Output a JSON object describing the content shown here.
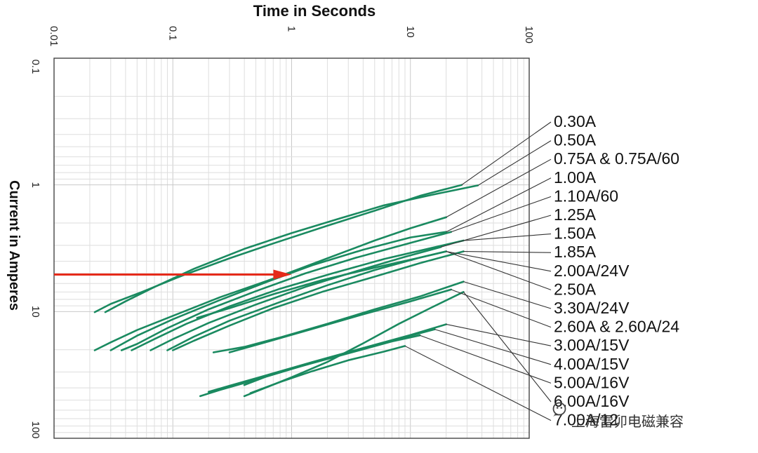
{
  "chart_data": {
    "type": "line",
    "xlabel": "Time in Seconds",
    "ylabel": "Current in Amperes",
    "x_scale": "log",
    "y_scale": "log",
    "xlim": [
      0.01,
      100
    ],
    "ylim": [
      0.1,
      100
    ],
    "y_inverted": true,
    "grid": true,
    "x_ticks": [
      "0.01",
      "0.1",
      "1",
      "10",
      "100"
    ],
    "y_ticks": [
      "0.1",
      "1",
      "10",
      "100"
    ],
    "line_color": "#1a8a60",
    "leader_color": "#333333",
    "arrow": {
      "color": "#e52a1a",
      "from": [
        0.01,
        5.1
      ],
      "to": [
        1.0,
        5.1
      ]
    },
    "series": [
      {
        "name": "0.30A",
        "x": [
          0.022,
          0.03,
          0.055,
          0.12,
          0.3,
          0.7,
          2,
          5,
          12,
          27
        ],
        "y": [
          10.1,
          8.7,
          7.0,
          5.2,
          3.8,
          2.9,
          2.1,
          1.6,
          1.22,
          1.0
        ]
      },
      {
        "name": "0.50A",
        "x": [
          0.027,
          0.04,
          0.07,
          0.15,
          0.4,
          1.0,
          2.5,
          6,
          15,
          37
        ],
        "y": [
          10.1,
          8.3,
          6.4,
          4.6,
          3.2,
          2.4,
          1.85,
          1.45,
          1.2,
          1.01
        ]
      },
      {
        "name": "0.75A & 0.75A/60",
        "x": [
          0.022,
          0.03,
          0.05,
          0.1,
          0.25,
          0.7,
          2,
          5,
          10,
          20
        ],
        "y": [
          20.2,
          17.5,
          14.0,
          10.8,
          7.7,
          5.5,
          3.8,
          2.75,
          2.2,
          1.8
        ]
      },
      {
        "name": "1.00A",
        "x": [
          0.03,
          0.05,
          0.1,
          0.25,
          0.6,
          1.5,
          4,
          10,
          20
        ],
        "y": [
          20.2,
          15.5,
          11.5,
          8.1,
          5.9,
          4.3,
          3.25,
          2.6,
          2.35
        ]
      },
      {
        "name": "1.10A/60",
        "x": [
          0.037,
          0.05,
          0.09,
          0.2,
          0.5,
          1.3,
          3.5,
          9,
          22
        ],
        "y": [
          20.2,
          18.0,
          13.5,
          9.6,
          6.9,
          5.0,
          3.75,
          2.95,
          2.35
        ]
      },
      {
        "name": "1.25A",
        "x": [
          0.065,
          0.1,
          0.2,
          0.5,
          1.3,
          3.5,
          9,
          18
        ],
        "y": [
          20.2,
          16.5,
          12.3,
          8.8,
          6.4,
          4.8,
          3.7,
          3.1
        ]
      },
      {
        "name": "1.50A",
        "x": [
          0.045,
          0.07,
          0.13,
          0.3,
          0.8,
          2.2,
          6,
          15,
          28
        ],
        "y": [
          20.2,
          16.5,
          12.5,
          9.1,
          6.6,
          5.0,
          3.85,
          3.15,
          2.75
        ]
      },
      {
        "name": "1.85A",
        "x": [
          0.1,
          0.15,
          0.3,
          0.7,
          1.8,
          5,
          12,
          28
        ],
        "y": [
          20.2,
          17.0,
          12.9,
          9.4,
          7.0,
          5.3,
          4.15,
          3.35
        ]
      },
      {
        "name": "2.00A/24V",
        "x": [
          0.09,
          0.15,
          0.3,
          0.8,
          2,
          5,
          12,
          20
        ],
        "y": [
          20.2,
          15.8,
          11.8,
          8.4,
          6.2,
          4.7,
          3.75,
          3.35
        ]
      },
      {
        "name": "2.50A",
        "x": [
          0.16,
          0.3,
          0.7,
          1.8,
          5,
          12,
          20
        ],
        "y": [
          11.2,
          9.4,
          7.3,
          5.65,
          4.5,
          3.75,
          3.35
        ]
      },
      {
        "name": "3.30A/24V",
        "x": [
          0.22,
          0.4,
          0.8,
          2,
          5,
          12,
          28
        ],
        "y": [
          21.0,
          19.0,
          16.0,
          12.5,
          9.6,
          7.6,
          5.8
        ]
      },
      {
        "name": "2.60A & 2.60A/24",
        "x": [
          0.3,
          0.6,
          1.5,
          4,
          10,
          22
        ],
        "y": [
          21.0,
          17.5,
          13.7,
          10.5,
          8.3,
          6.7
        ]
      },
      {
        "name": "3.00A/15V",
        "x": [
          0.2,
          0.3,
          0.6,
          1.5,
          4,
          10,
          20
        ],
        "y": [
          43.0,
          38.5,
          32.0,
          25.0,
          19.4,
          15.3,
          12.6
        ]
      },
      {
        "name": "4.00A/15V",
        "x": [
          0.17,
          0.25,
          0.5,
          1.2,
          3,
          8,
          16
        ],
        "y": [
          46.5,
          41.5,
          34.5,
          27.0,
          21.0,
          16.4,
          13.8
        ]
      },
      {
        "name": "5.00A/16V",
        "x": [
          0.4,
          0.7,
          1.5,
          3.5,
          7,
          12
        ],
        "y": [
          38.0,
          31.0,
          25.5,
          20.5,
          17.2,
          15.4
        ]
      },
      {
        "name": "6.00A/16V",
        "x": [
          0.4,
          0.6,
          1.0,
          2,
          4,
          8,
          15,
          28
        ],
        "y": [
          46.5,
          40.0,
          33.0,
          25.0,
          17.8,
          12.5,
          9.3,
          7.0
        ]
      },
      {
        "name": "7.00A/12",
        "x": [
          0.45,
          0.8,
          1.5,
          3,
          6,
          9
        ],
        "y": [
          44.0,
          36.0,
          29.5,
          24.2,
          20.7,
          18.7
        ]
      }
    ]
  },
  "watermark": {
    "icon": "wechat-icon",
    "text": "上海雷卯电磁兼容"
  }
}
